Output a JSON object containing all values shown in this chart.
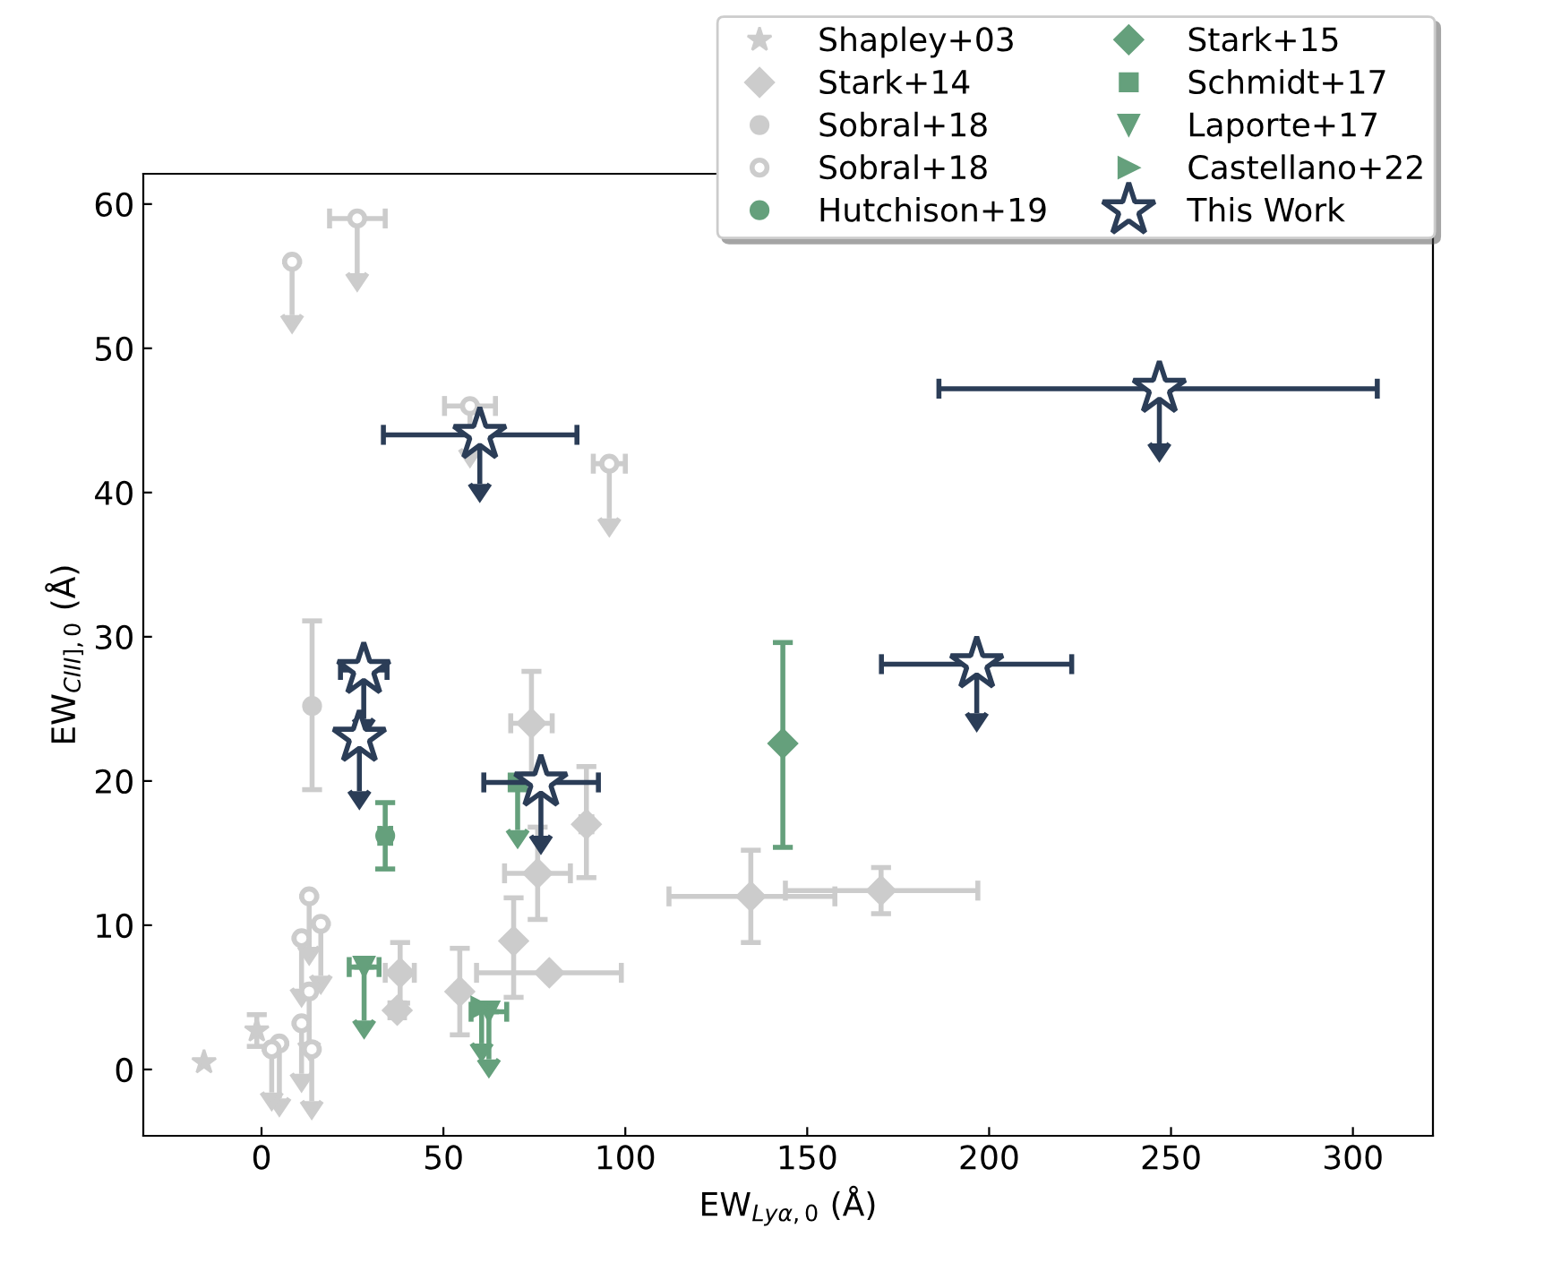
{
  "chart_data": {
    "type": "scatter",
    "xlabel": "EW$_{Lyα,0}$ (Å)",
    "ylabel": "EW$_{CIII],0}$ (Å)",
    "xlim": [
      -32.5,
      322
    ],
    "ylim": [
      -4.6,
      62.1
    ],
    "xticks": [
      0,
      50,
      100,
      150,
      200,
      250,
      300
    ],
    "yticks": [
      0,
      10,
      20,
      30,
      40,
      50,
      60
    ],
    "legend": "top right",
    "series": [
      {
        "name": "Shapley+03",
        "color": "#cccccc",
        "marker": "star",
        "x": [
          -15.8,
          -1.3
        ],
        "values": [
          0.5,
          2.7
        ],
        "errors": [
          null,
          [
            1.6,
            3.8
          ]
        ]
      },
      {
        "name": "Stark+14",
        "color": "#cccccc",
        "marker": "diamond",
        "x": [
          38.1,
          37.3,
          54.5,
          79.1,
          74.2,
          75.9,
          69.3,
          89.3,
          134.5,
          170.3
        ],
        "values": [
          6.7,
          4.1,
          5.4,
          6.7,
          24.0,
          13.6,
          8.9,
          17.0,
          12.0,
          12.4
        ],
        "errors": [
          [
            4.6,
            8.8
          ],
          null,
          [
            2.4,
            8.4
          ],
          null,
          [
            20.5,
            27.6
          ],
          [
            10.4,
            16.8
          ],
          [
            5.0,
            11.9
          ],
          [
            13.3,
            21.0
          ],
          [
            8.8,
            15.2
          ],
          [
            10.8,
            14.0
          ]
        ],
        "xerrors": [
          [
            34,
            42
          ],
          [
            35.3,
            39.3
          ],
          [
            53.5,
            55.5
          ],
          [
            59.1,
            98.9
          ],
          [
            68.5,
            79.9
          ],
          [
            66.8,
            84.9
          ],
          null,
          [
            87.8,
            90.8
          ],
          [
            112,
            157.6
          ],
          [
            144,
            196.9
          ]
        ]
      },
      {
        "name": "Sobral+18",
        "color": "#cccccc",
        "marker": "circle",
        "x": [
          13.9
        ],
        "values": [
          25.2
        ],
        "errors": [
          [
            19.4,
            31.1
          ]
        ]
      },
      {
        "name": "Sobral+18",
        "color": "#cccccc",
        "marker": "circle_open",
        "x": [
          8.4,
          26.3,
          57.3,
          95.6,
          13.1,
          16.3,
          11.0,
          13.1,
          11.0,
          4.9,
          2.8,
          13.8
        ],
        "values": [
          56.0,
          59.0,
          46.0,
          42.0,
          12.0,
          10.1,
          9.1,
          5.4,
          3.2,
          1.8,
          1.4,
          1.4
        ],
        "errors": [
          [
            52.3,
            56.0
          ],
          [
            55.2,
            59.0
          ],
          [
            43.0,
            46.0
          ],
          [
            38.2,
            42.0
          ],
          [
            8.5,
            12.0
          ],
          [
            6.5,
            10.1
          ],
          [
            5.6,
            9.1
          ],
          [
            1.9,
            5.4
          ],
          [
            -0.3,
            3.2
          ],
          [
            -2.0,
            1.8
          ],
          [
            -1.6,
            1.4
          ],
          [
            -2.2,
            1.4
          ]
        ],
        "xerrors": [
          null,
          [
            18.7,
            34.0
          ],
          [
            50.3,
            64.3
          ],
          [
            91.2,
            100.0
          ],
          null,
          null,
          null,
          null,
          null,
          null,
          null,
          null
        ]
      },
      {
        "name": "Hutchison+19",
        "color": "#65a07c",
        "marker": "circle",
        "x": [
          34.0
        ],
        "values": [
          16.2
        ],
        "errors": [
          [
            13.9,
            18.5
          ]
        ],
        "xerrors": [
          [
            32.5,
            35.5
          ]
        ]
      },
      {
        "name": "Stark+15",
        "color": "#65a07c",
        "marker": "diamond",
        "x": [
          143.3
        ],
        "values": [
          22.6
        ],
        "errors": [
          [
            15.4,
            29.6
          ]
        ]
      },
      {
        "name": "Schmidt+17",
        "color": "#65a07c",
        "marker": "square",
        "x": [
          70.4
        ],
        "values": [
          19.9
        ],
        "errors": [
          [
            16.6,
            19.9
          ]
        ]
      },
      {
        "name": "Laporte+17",
        "color": "#65a07c",
        "marker": "triangle_down",
        "x": [
          28.2,
          62.5
        ],
        "values": [
          7.1,
          4.0
        ],
        "errors": [
          [
            3.4,
            7.1
          ],
          [
            0.7,
            4.0
          ]
        ],
        "xerrors": [
          [
            24.1,
            32.3
          ],
          [
            57.6,
            67.4
          ]
        ]
      },
      {
        "name": "Castellano+22",
        "color": "#65a07c",
        "marker": "triangle_right",
        "x": [
          60.5
        ],
        "values": [
          4.3
        ],
        "errors": [
          [
            1.8,
            4.3
          ]
        ]
      },
      {
        "name": "This Work",
        "color": "#2b3d57",
        "marker": "star_open",
        "x": [
          60.0,
          246.8,
          196.6,
          28.1,
          26.9,
          76.8
        ],
        "values": [
          44.0,
          47.2,
          28.1,
          27.7,
          23.0,
          19.9
        ],
        "errors": [
          [
            40.6,
            44.0
          ],
          [
            43.4,
            47.2
          ],
          [
            24.7,
            28.1
          ],
          [
            24.3,
            27.7
          ],
          [
            19.3,
            23.0
          ],
          [
            16.2,
            19.9
          ]
        ],
        "xerrors": [
          [
            33.5,
            86.7
          ],
          [
            186.2,
            306.7
          ],
          [
            170.4,
            222.7
          ],
          [
            21.7,
            34.5
          ],
          null,
          [
            61.1,
            92.6
          ]
        ]
      }
    ]
  }
}
